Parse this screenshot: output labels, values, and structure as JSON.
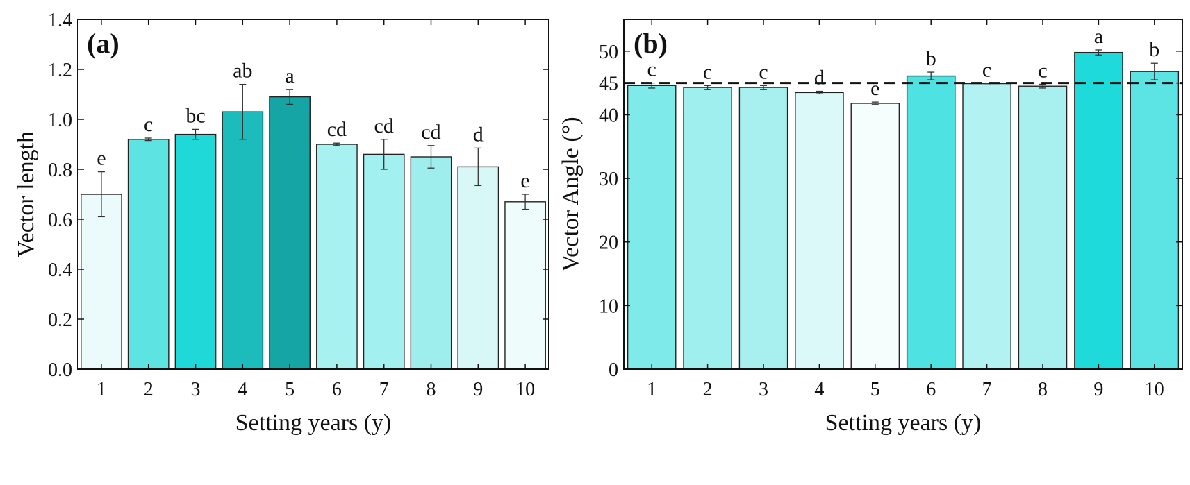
{
  "chart_data": [
    {
      "type": "bar",
      "panel_label": "(a)",
      "xlabel": "Setting years (y)",
      "ylabel": "Vector length",
      "categories": [
        "1",
        "2",
        "3",
        "4",
        "5",
        "6",
        "7",
        "8",
        "9",
        "10"
      ],
      "values": [
        0.7,
        0.92,
        0.94,
        1.03,
        1.09,
        0.9,
        0.86,
        0.85,
        0.81,
        0.67
      ],
      "errors": [
        0.09,
        0.005,
        0.02,
        0.11,
        0.03,
        0.005,
        0.06,
        0.045,
        0.075,
        0.03
      ],
      "significance": [
        "e",
        "c",
        "bc",
        "ab",
        "a",
        "cd",
        "cd",
        "cd",
        "d",
        "e"
      ],
      "colors": [
        "#ebfbfb",
        "#5ee3e3",
        "#1fd8d8",
        "#1cbcbc",
        "#16a5a5",
        "#a8f1f1",
        "#a2f0f0",
        "#9eeeee",
        "#d8f8f8",
        "#eefcfc"
      ],
      "ylim": [
        0,
        1.4
      ],
      "yticks": [
        "0.0",
        "0.2",
        "0.4",
        "0.6",
        "0.8",
        "1.0",
        "1.2",
        "1.4"
      ],
      "reference_line": null,
      "grid": false
    },
    {
      "type": "bar",
      "panel_label": "(b)",
      "xlabel": "Setting years (y)",
      "ylabel": "Vector Angle (°)",
      "categories": [
        "1",
        "2",
        "3",
        "4",
        "5",
        "6",
        "7",
        "8",
        "9",
        "10"
      ],
      "values": [
        44.6,
        44.3,
        44.3,
        43.5,
        41.8,
        46.1,
        44.9,
        44.5,
        49.8,
        46.8
      ],
      "errors": [
        0.4,
        0.3,
        0.3,
        0.2,
        0.2,
        0.6,
        0.0,
        0.3,
        0.4,
        1.3
      ],
      "significance": [
        "c",
        "c",
        "c",
        "d",
        "e",
        "b",
        "c",
        "c",
        "a",
        "b"
      ],
      "colors": [
        "#7eeaea",
        "#a0efef",
        "#a8f0f0",
        "#dcf9f9",
        "#f5fdfd",
        "#4fe2e2",
        "#b2f2f2",
        "#a8f0f0",
        "#1edada",
        "#5ce3e3"
      ],
      "ylim": [
        0,
        55
      ],
      "yticks": [
        "0",
        "10",
        "20",
        "30",
        "40",
        "45",
        "50"
      ],
      "reference_line": 45,
      "grid": false
    }
  ]
}
